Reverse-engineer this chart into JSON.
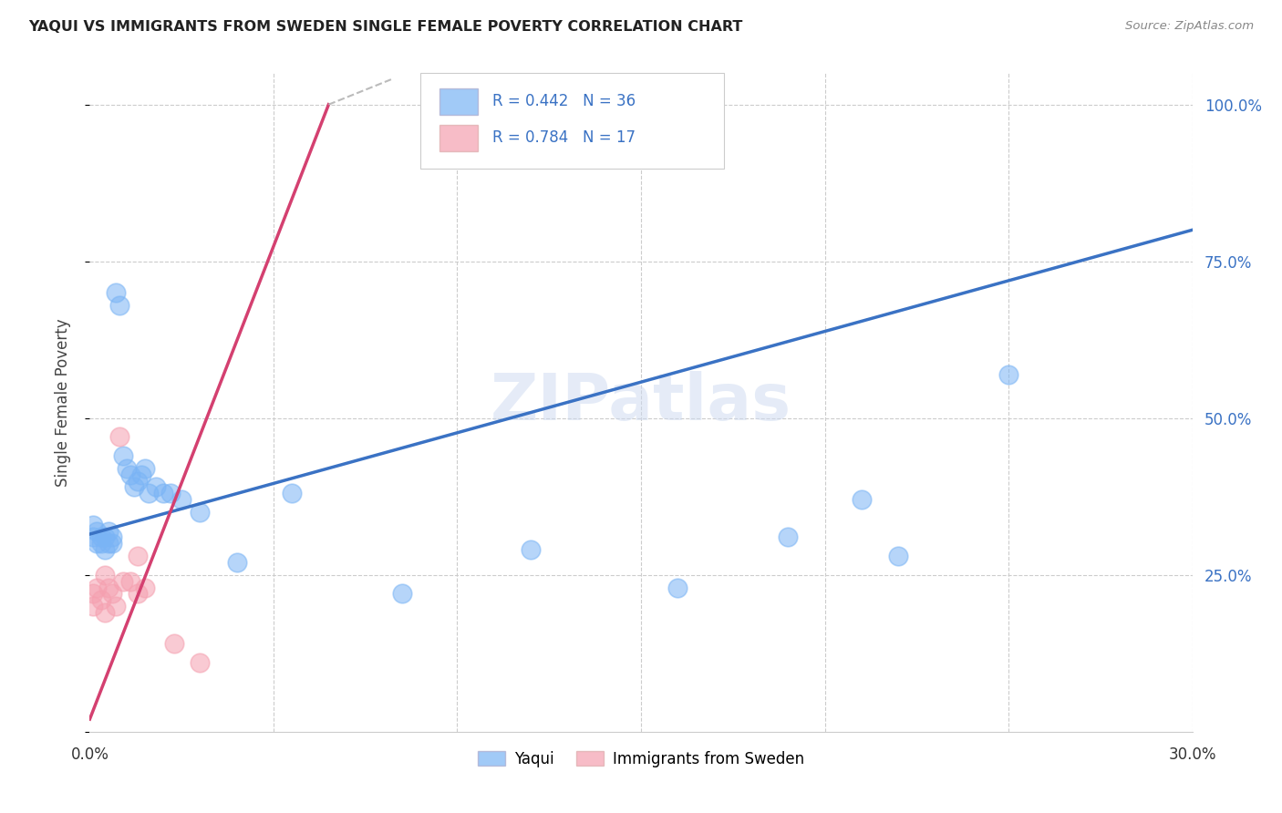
{
  "title": "YAQUI VS IMMIGRANTS FROM SWEDEN SINGLE FEMALE POVERTY CORRELATION CHART",
  "source": "Source: ZipAtlas.com",
  "ylabel": "Single Female Poverty",
  "xlim": [
    0.0,
    0.3
  ],
  "ylim": [
    0.0,
    1.05
  ],
  "xtick_positions": [
    0.0,
    0.05,
    0.1,
    0.15,
    0.2,
    0.25,
    0.3
  ],
  "xtick_labels": [
    "0.0%",
    "",
    "",
    "",
    "",
    "",
    "30.0%"
  ],
  "ytick_positions": [
    0.0,
    0.25,
    0.5,
    0.75,
    1.0
  ],
  "ytick_labels_right": [
    "",
    "25.0%",
    "50.0%",
    "75.0%",
    "100.0%"
  ],
  "series1_name": "Yaqui",
  "series1_color": "#7ab4f5",
  "series1_R": "0.442",
  "series1_N": "36",
  "series2_name": "Immigrants from Sweden",
  "series2_color": "#f5a0b0",
  "series2_R": "0.784",
  "series2_N": "17",
  "trendline1_color": "#3a72c4",
  "trendline2_color": "#d44070",
  "watermark": "ZIPatlas",
  "background_color": "#ffffff",
  "grid_color": "#cccccc",
  "yaqui_x": [
    0.001,
    0.001,
    0.002,
    0.002,
    0.003,
    0.003,
    0.004,
    0.004,
    0.005,
    0.005,
    0.006,
    0.006,
    0.007,
    0.008,
    0.009,
    0.01,
    0.011,
    0.012,
    0.013,
    0.014,
    0.015,
    0.016,
    0.018,
    0.02,
    0.022,
    0.025,
    0.03,
    0.04,
    0.055,
    0.085,
    0.12,
    0.16,
    0.19,
    0.21,
    0.22,
    0.25
  ],
  "yaqui_y": [
    0.31,
    0.33,
    0.3,
    0.32,
    0.3,
    0.31,
    0.29,
    0.31,
    0.3,
    0.32,
    0.3,
    0.31,
    0.7,
    0.68,
    0.44,
    0.42,
    0.41,
    0.39,
    0.4,
    0.41,
    0.42,
    0.38,
    0.39,
    0.38,
    0.38,
    0.37,
    0.35,
    0.27,
    0.38,
    0.22,
    0.29,
    0.23,
    0.31,
    0.37,
    0.28,
    0.57
  ],
  "sweden_x": [
    0.001,
    0.001,
    0.002,
    0.003,
    0.004,
    0.004,
    0.005,
    0.006,
    0.007,
    0.008,
    0.009,
    0.011,
    0.013,
    0.013,
    0.015,
    0.023,
    0.03
  ],
  "sweden_y": [
    0.2,
    0.22,
    0.23,
    0.21,
    0.19,
    0.25,
    0.23,
    0.22,
    0.2,
    0.47,
    0.24,
    0.24,
    0.22,
    0.28,
    0.23,
    0.14,
    0.11
  ],
  "trendline1_x0": 0.0,
  "trendline1_y0": 0.315,
  "trendline1_x1": 0.3,
  "trendline1_y1": 0.8,
  "trendline2_x0": 0.0,
  "trendline2_y0": 0.02,
  "trendline2_x1": 0.065,
  "trendline2_y1": 1.0,
  "trendline2_dash_x0": 0.065,
  "trendline2_dash_y0": 1.0,
  "trendline2_dash_x1": 0.082,
  "trendline2_dash_y1": 1.04
}
